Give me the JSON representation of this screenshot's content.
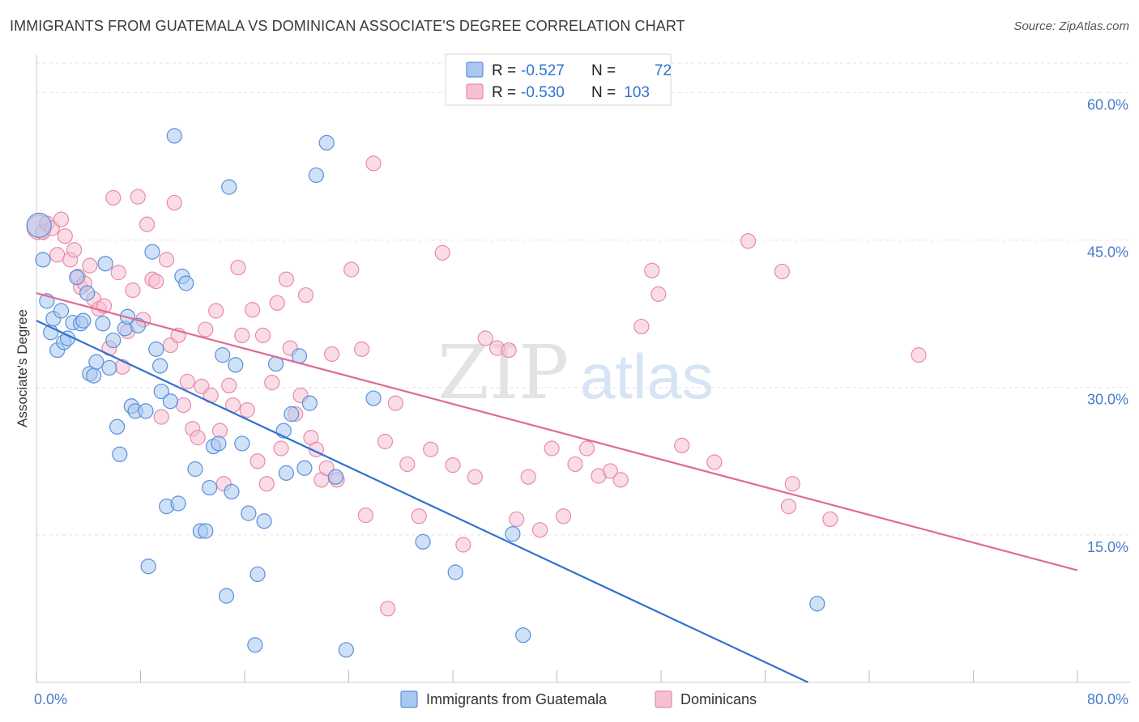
{
  "title": "IMMIGRANTS FROM GUATEMALA VS DOMINICAN ASSOCIATE'S DEGREE CORRELATION CHART",
  "source": "Source: ZipAtlas.com",
  "watermark": {
    "zip": "ZIP",
    "atlas": "atlas"
  },
  "stats": [
    {
      "r_label": "R =",
      "r_value": "-0.527",
      "n_label": "N =",
      "n_value": "72"
    },
    {
      "r_label": "R =",
      "r_value": "-0.530",
      "n_label": "N =",
      "n_value": "103"
    }
  ],
  "chart_data": {
    "type": "scatter",
    "ylabel": "Associate's Degree",
    "xlim": [
      0,
      80
    ],
    "ylim": [
      0,
      63
    ],
    "x_tick_labels": [
      "0.0%",
      "80.0%"
    ],
    "y_ticks": [
      15,
      30,
      45,
      60
    ],
    "y_tick_labels": [
      "15.0%",
      "30.0%",
      "45.0%",
      "60.0%"
    ],
    "grid": true,
    "colors": {
      "blue": "#5b8fd9",
      "blue_fill": "#a8c8f0",
      "blue_line": "#2f72d1",
      "pink": "#e88aab",
      "pink_fill": "#f6bfd2",
      "pink_line": "#e06a93",
      "tick": "#4a7cc9"
    },
    "series": [
      {
        "name": "Immigrants from Guatemala",
        "trend": {
          "x": [
            0,
            59.3
          ],
          "y": [
            36.8,
            0
          ]
        },
        "points": [
          [
            0.2,
            46.5
          ],
          [
            0.5,
            43.0
          ],
          [
            0.8,
            38.8
          ],
          [
            1.1,
            35.6
          ],
          [
            1.3,
            37.0
          ],
          [
            1.6,
            33.8
          ],
          [
            1.9,
            37.8
          ],
          [
            2.1,
            34.6
          ],
          [
            2.4,
            35.0
          ],
          [
            2.8,
            36.6
          ],
          [
            3.1,
            41.2
          ],
          [
            3.4,
            36.5
          ],
          [
            3.6,
            36.8
          ],
          [
            3.9,
            39.6
          ],
          [
            4.1,
            31.4
          ],
          [
            4.4,
            31.2
          ],
          [
            4.6,
            32.6
          ],
          [
            5.1,
            36.5
          ],
          [
            5.3,
            42.6
          ],
          [
            5.6,
            32.0
          ],
          [
            5.9,
            34.8
          ],
          [
            6.2,
            26.0
          ],
          [
            6.4,
            23.2
          ],
          [
            6.8,
            36.0
          ],
          [
            7.0,
            37.2
          ],
          [
            7.3,
            28.1
          ],
          [
            7.6,
            27.6
          ],
          [
            7.8,
            36.3
          ],
          [
            8.4,
            27.6
          ],
          [
            8.6,
            11.8
          ],
          [
            8.9,
            43.8
          ],
          [
            9.2,
            33.9
          ],
          [
            9.5,
            32.2
          ],
          [
            9.6,
            29.6
          ],
          [
            10.0,
            17.9
          ],
          [
            10.3,
            28.6
          ],
          [
            10.6,
            55.6
          ],
          [
            10.9,
            18.2
          ],
          [
            11.2,
            41.3
          ],
          [
            11.5,
            40.6
          ],
          [
            12.2,
            21.7
          ],
          [
            12.6,
            15.4
          ],
          [
            13.0,
            15.4
          ],
          [
            13.3,
            19.8
          ],
          [
            13.6,
            24.0
          ],
          [
            14.0,
            24.3
          ],
          [
            14.3,
            33.3
          ],
          [
            14.6,
            8.8
          ],
          [
            14.8,
            50.4
          ],
          [
            15.0,
            19.4
          ],
          [
            15.3,
            32.3
          ],
          [
            15.8,
            24.3
          ],
          [
            16.3,
            17.2
          ],
          [
            16.8,
            3.8
          ],
          [
            17.0,
            11.0
          ],
          [
            17.5,
            16.4
          ],
          [
            18.4,
            32.4
          ],
          [
            19.0,
            25.6
          ],
          [
            19.2,
            21.3
          ],
          [
            19.6,
            27.3
          ],
          [
            20.2,
            33.2
          ],
          [
            20.6,
            21.8
          ],
          [
            21.0,
            28.4
          ],
          [
            21.5,
            51.6
          ],
          [
            22.3,
            54.9
          ],
          [
            23.0,
            20.9
          ],
          [
            23.8,
            3.3
          ],
          [
            25.9,
            28.9
          ],
          [
            29.7,
            14.3
          ],
          [
            32.2,
            11.2
          ],
          [
            36.6,
            15.1
          ],
          [
            37.4,
            4.8
          ],
          [
            60.0,
            8.0
          ]
        ]
      },
      {
        "name": "Dominicans",
        "trend": {
          "x": [
            0,
            80
          ],
          "y": [
            39.6,
            11.4
          ]
        },
        "points": [
          [
            0.2,
            46.3
          ],
          [
            0.5,
            45.8
          ],
          [
            0.8,
            46.7
          ],
          [
            1.2,
            46.2
          ],
          [
            1.6,
            43.5
          ],
          [
            1.9,
            47.1
          ],
          [
            2.2,
            45.4
          ],
          [
            2.6,
            43.0
          ],
          [
            2.9,
            44.0
          ],
          [
            3.2,
            41.3
          ],
          [
            3.4,
            40.2
          ],
          [
            3.7,
            40.6
          ],
          [
            4.1,
            42.4
          ],
          [
            4.4,
            39.0
          ],
          [
            4.8,
            38.0
          ],
          [
            5.2,
            38.3
          ],
          [
            5.6,
            34.0
          ],
          [
            5.9,
            49.3
          ],
          [
            6.3,
            41.7
          ],
          [
            6.6,
            32.1
          ],
          [
            7.0,
            35.7
          ],
          [
            7.4,
            39.9
          ],
          [
            7.8,
            49.4
          ],
          [
            8.2,
            36.9
          ],
          [
            8.5,
            46.6
          ],
          [
            8.9,
            41.0
          ],
          [
            9.2,
            40.8
          ],
          [
            9.6,
            27.0
          ],
          [
            10.0,
            43.0
          ],
          [
            10.3,
            34.3
          ],
          [
            10.6,
            48.8
          ],
          [
            10.9,
            35.3
          ],
          [
            11.3,
            28.2
          ],
          [
            11.6,
            30.6
          ],
          [
            12.0,
            25.8
          ],
          [
            12.4,
            24.9
          ],
          [
            12.7,
            30.1
          ],
          [
            13.0,
            35.9
          ],
          [
            13.4,
            29.2
          ],
          [
            13.8,
            37.8
          ],
          [
            14.1,
            25.6
          ],
          [
            14.4,
            20.2
          ],
          [
            14.8,
            30.2
          ],
          [
            15.1,
            28.2
          ],
          [
            15.5,
            42.2
          ],
          [
            15.8,
            35.3
          ],
          [
            16.2,
            27.7
          ],
          [
            16.6,
            37.9
          ],
          [
            17.0,
            22.5
          ],
          [
            17.4,
            35.3
          ],
          [
            17.7,
            20.2
          ],
          [
            18.1,
            30.5
          ],
          [
            18.5,
            38.6
          ],
          [
            18.8,
            23.8
          ],
          [
            19.2,
            41.0
          ],
          [
            19.5,
            34.0
          ],
          [
            19.9,
            27.3
          ],
          [
            20.3,
            29.2
          ],
          [
            20.7,
            39.4
          ],
          [
            21.1,
            24.9
          ],
          [
            21.5,
            23.7
          ],
          [
            21.9,
            20.6
          ],
          [
            22.3,
            21.8
          ],
          [
            22.7,
            33.4
          ],
          [
            23.1,
            20.6
          ],
          [
            24.2,
            42.0
          ],
          [
            25.0,
            33.9
          ],
          [
            25.9,
            52.8
          ],
          [
            26.8,
            24.5
          ],
          [
            27.6,
            28.4
          ],
          [
            28.5,
            22.2
          ],
          [
            29.4,
            16.9
          ],
          [
            30.3,
            23.7
          ],
          [
            31.2,
            43.7
          ],
          [
            32.0,
            22.1
          ],
          [
            32.8,
            14.0
          ],
          [
            33.7,
            20.9
          ],
          [
            34.5,
            35.0
          ],
          [
            35.4,
            34.0
          ],
          [
            36.3,
            33.8
          ],
          [
            36.9,
            16.6
          ],
          [
            37.8,
            20.9
          ],
          [
            38.7,
            15.5
          ],
          [
            39.6,
            23.8
          ],
          [
            40.5,
            16.9
          ],
          [
            41.4,
            22.2
          ],
          [
            42.3,
            23.8
          ],
          [
            43.2,
            21.0
          ],
          [
            44.1,
            21.5
          ],
          [
            44.9,
            20.6
          ],
          [
            46.5,
            36.2
          ],
          [
            47.3,
            41.9
          ],
          [
            47.8,
            39.5
          ],
          [
            49.6,
            24.1
          ],
          [
            52.1,
            22.4
          ],
          [
            54.7,
            44.9
          ],
          [
            57.3,
            41.8
          ],
          [
            57.8,
            17.9
          ],
          [
            58.1,
            20.2
          ],
          [
            61.0,
            16.6
          ],
          [
            27.0,
            7.5
          ],
          [
            25.3,
            17.0
          ],
          [
            67.8,
            33.3
          ]
        ]
      }
    ]
  }
}
